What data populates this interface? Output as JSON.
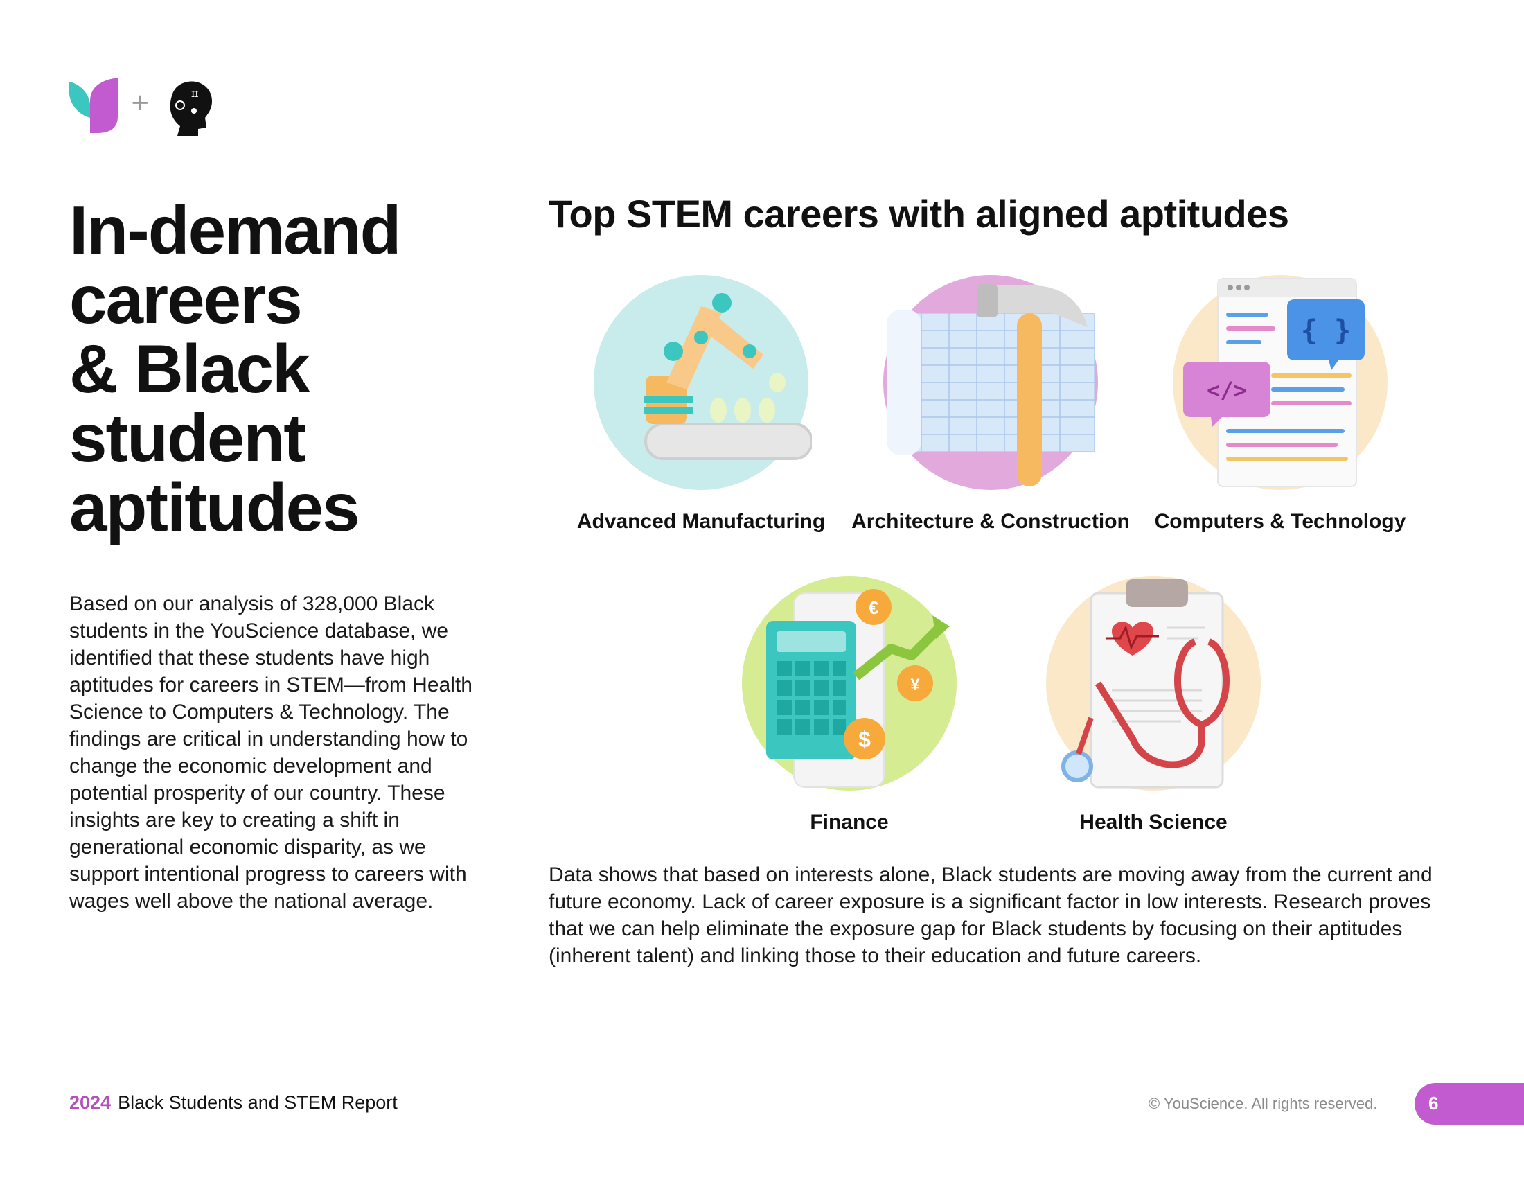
{
  "logo": {
    "plus": "+",
    "icons": [
      "youscience-leaf-logo",
      "partner-profile-logo"
    ]
  },
  "title_lines": [
    "In-demand",
    "careers",
    "& Black",
    "student",
    "aptitudes"
  ],
  "intro": "Based on our analysis of 328,000 Black students in the YouScience database, we identified that these students have high aptitudes for careers in STEM—from Health Science to Computers & Technology. The findings are critical in understanding how to change the economic development and potential prosperity of our country. These insights are key to creating a shift in generational economic disparity, as we support intentional progress to careers with wages well above the national average.",
  "section_title": "Top STEM careers with aligned aptitudes",
  "careers": [
    {
      "label": "Advanced Manufacturing",
      "icon": "robot-arm-icon",
      "bg": "#c8ecec"
    },
    {
      "label": "Architecture & Construction",
      "icon": "hammer-blueprint-icon",
      "bg": "#e2a9dd"
    },
    {
      "label": "Computers & Technology",
      "icon": "code-window-icon",
      "bg": "#fbe8c9"
    },
    {
      "label": "Finance",
      "icon": "calculator-coins-icon",
      "bg": "#d6ec92"
    },
    {
      "label": "Health Science",
      "icon": "clipboard-stethoscope-icon",
      "bg": "#fbe8c9"
    }
  ],
  "closing": "Data shows that based on interests alone, Black students are moving away from the current and future economy. Lack of career exposure is a significant factor in low interests. Research proves that we can help eliminate the exposure gap for Black students by focusing on their aptitudes (inherent talent) and linking those to their education and future careers.",
  "footer": {
    "year": "2024",
    "report": "Black Students and STEM Report",
    "copyright": "© YouScience. All rights reserved.",
    "page": "6"
  },
  "colors": {
    "accent": "#c25bcf",
    "teal": "#3cc6c0"
  }
}
